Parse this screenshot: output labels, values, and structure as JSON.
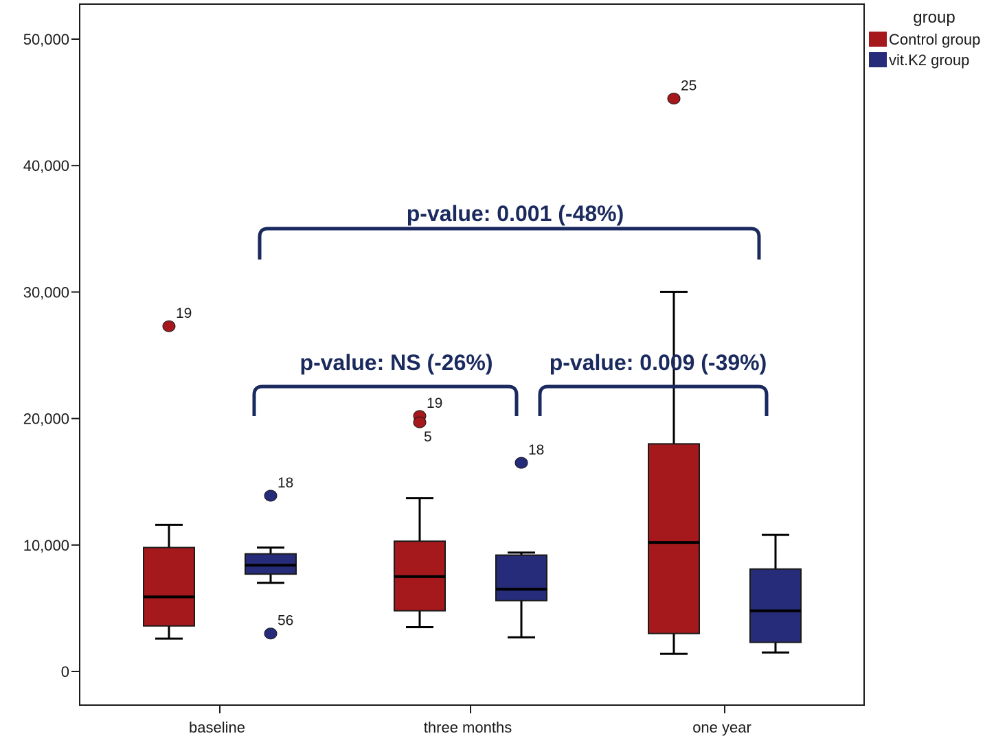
{
  "chart_data": {
    "type": "boxplot",
    "categories": [
      "baseline",
      "three months",
      "one year"
    ],
    "ylim": [
      -2500,
      52500
    ],
    "yticks": [
      {
        "value": 0,
        "label": "0"
      },
      {
        "value": 10000,
        "label": "10,000"
      },
      {
        "value": 20000,
        "label": "20,000"
      },
      {
        "value": 30000,
        "label": "30,000"
      },
      {
        "value": 40000,
        "label": "40,000"
      },
      {
        "value": 50000,
        "label": "50,000"
      }
    ],
    "legend": {
      "title": "group",
      "position": "top-right"
    },
    "series": [
      {
        "name": "Control group",
        "color": "#a5191c",
        "boxes": [
          {
            "category": "baseline",
            "min": 2600,
            "q1": 3600,
            "median": 5900,
            "q3": 9800,
            "max": 11600,
            "outliers": [
              {
                "value": 27300,
                "label": "19"
              }
            ]
          },
          {
            "category": "three months",
            "min": 3500,
            "q1": 4800,
            "median": 7500,
            "q3": 10300,
            "max": 13700,
            "outliers": [
              {
                "value": 20200,
                "label": "19"
              },
              {
                "value": 19700,
                "label": "5"
              }
            ]
          },
          {
            "category": "one year",
            "min": 1400,
            "q1": 3000,
            "median": 10200,
            "q3": 18000,
            "max": 30000,
            "outliers": [
              {
                "value": 45300,
                "label": "25"
              }
            ]
          }
        ]
      },
      {
        "name": "vit.K2 group",
        "color": "#262b7a",
        "boxes": [
          {
            "category": "baseline",
            "min": 7000,
            "q1": 7700,
            "median": 8400,
            "q3": 9300,
            "max": 9800,
            "outliers": [
              {
                "value": 13900,
                "label": "18"
              },
              {
                "value": 3000,
                "label": "56"
              }
            ]
          },
          {
            "category": "three months",
            "min": 2700,
            "q1": 5600,
            "median": 6500,
            "q3": 9200,
            "max": 9400,
            "outliers": [
              {
                "value": 16500,
                "label": "18"
              }
            ]
          },
          {
            "category": "one year",
            "min": 1500,
            "q1": 2300,
            "median": 4800,
            "q3": 8100,
            "max": 10800,
            "outliers": []
          }
        ]
      }
    ],
    "annotations": [
      {
        "text": "p-value: 0.001 (-48%)",
        "from": "baseline vit.K2 group",
        "to": "one year vit.K2 group"
      },
      {
        "text": "p-value: NS (-26%)",
        "from": "baseline vit.K2 group",
        "to": "three months vit.K2 group"
      },
      {
        "text": "p-value: 0.009 (-39%)",
        "from": "three months vit.K2 group",
        "to": "one year vit.K2 group"
      }
    ]
  }
}
